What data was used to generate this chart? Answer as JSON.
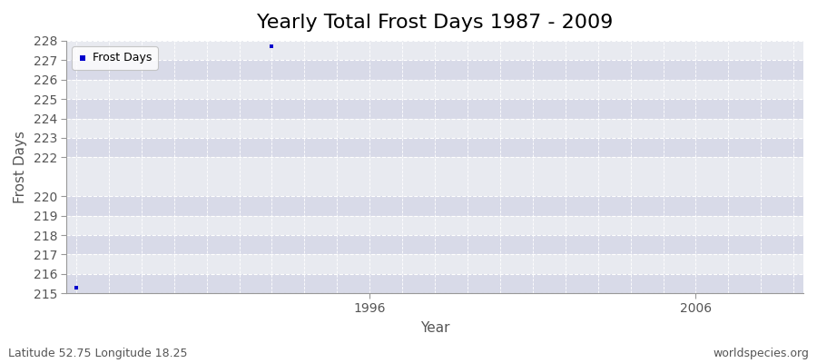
{
  "title": "Yearly Total Frost Days 1987 - 2009",
  "xlabel": "Year",
  "ylabel": "Frost Days",
  "footnote_left": "Latitude 52.75 Longitude 18.25",
  "footnote_right": "worldspecies.org",
  "legend_label": "Frost Days",
  "marker_color": "#0000cc",
  "background_color": "#e8eaf0",
  "band_color_light": "#e8eaf0",
  "band_color_dark": "#d8dae8",
  "grid_color": "#ffffff",
  "years": [
    1987,
    1988,
    1989,
    1990,
    1991,
    1992,
    1993,
    1994,
    1995,
    1996,
    1997,
    1998,
    1999,
    2000,
    2001,
    2002,
    2003,
    2004,
    2005,
    2006,
    2007,
    2008,
    2009
  ],
  "frost_days": [
    215.3,
    null,
    null,
    null,
    null,
    null,
    227.7,
    null,
    null,
    null,
    null,
    null,
    null,
    null,
    null,
    null,
    null,
    null,
    null,
    null,
    null,
    null,
    null
  ],
  "ylim": [
    215,
    228
  ],
  "yticks": [
    215,
    216,
    217,
    218,
    219,
    220,
    222,
    223,
    224,
    225,
    226,
    227,
    228
  ],
  "xlim": [
    1987,
    2009
  ],
  "xtick_years": [
    1996,
    2006
  ],
  "title_fontsize": 16,
  "axis_label_fontsize": 11,
  "tick_fontsize": 10,
  "footnote_fontsize": 9
}
